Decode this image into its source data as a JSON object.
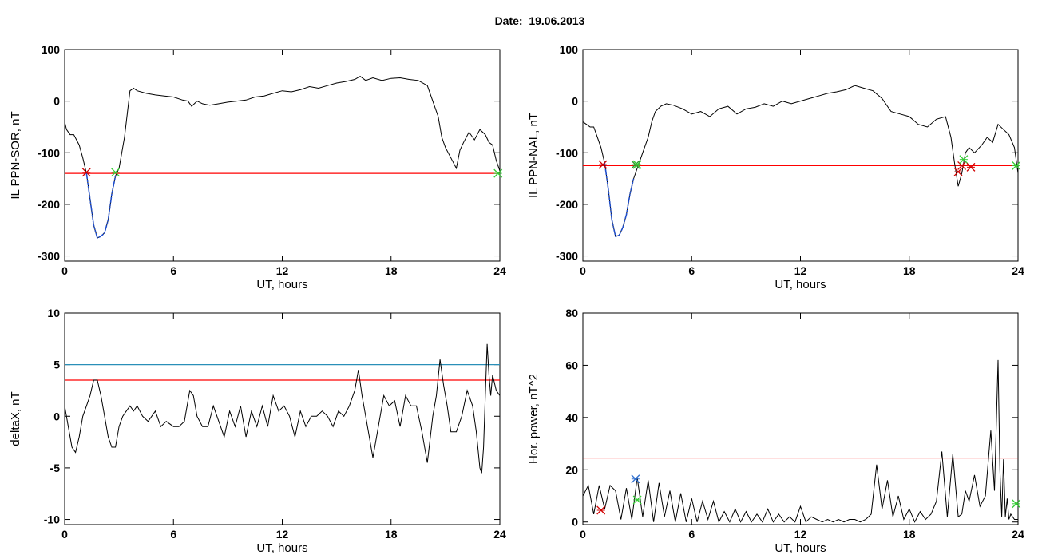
{
  "page_title": "Date:  19.06.2013",
  "chart_data": [
    {
      "type": "line",
      "ylabel": "IL PPN-SOR, nT",
      "xlabel": "UT, hours",
      "xlim": [
        0,
        24
      ],
      "ylim": [
        -310,
        100
      ],
      "xticks": [
        0,
        6,
        12,
        18,
        24
      ],
      "yticks": [
        -300,
        -200,
        -100,
        0,
        100
      ],
      "series": [
        {
          "color": "#000000",
          "x": [
            0,
            0.1,
            0.3,
            0.5,
            0.8,
            1.0,
            1.2,
            1.4,
            1.6,
            1.8,
            2.0,
            2.2,
            2.4,
            2.6,
            2.8,
            3.0,
            3.1,
            3.3,
            3.5,
            3.6,
            3.8,
            4.0,
            4.5,
            5.0,
            5.5,
            6.0,
            6.5,
            6.8,
            7.0,
            7.3,
            7.6,
            8.0,
            8.5,
            9.0,
            9.5,
            10.0,
            10.5,
            11.0,
            11.5,
            12.0,
            12.5,
            13.0,
            13.5,
            14.0,
            14.5,
            15.0,
            15.5,
            16.0,
            16.3,
            16.6,
            17.0,
            17.5,
            18.0,
            18.5,
            19.0,
            19.5,
            20.0,
            20.3,
            20.6,
            20.8,
            21.0,
            21.3,
            21.6,
            21.8,
            22.0,
            22.3,
            22.6,
            22.9,
            23.2,
            23.4,
            23.6,
            23.8,
            24.0
          ],
          "y": [
            -40,
            -55,
            -65,
            -65,
            -85,
            -110,
            -140,
            -190,
            -240,
            -265,
            -262,
            -255,
            -230,
            -180,
            -145,
            -130,
            -110,
            -70,
            -10,
            20,
            25,
            20,
            15,
            12,
            10,
            8,
            2,
            0,
            -10,
            0,
            -5,
            -8,
            -5,
            -2,
            0,
            2,
            8,
            10,
            15,
            20,
            18,
            22,
            28,
            25,
            30,
            35,
            38,
            42,
            48,
            40,
            45,
            40,
            44,
            45,
            42,
            40,
            30,
            0,
            -30,
            -70,
            -90,
            -110,
            -130,
            -95,
            -80,
            -60,
            -75,
            -55,
            -65,
            -80,
            -85,
            -115,
            -135
          ]
        },
        {
          "color": "#1f4fd0",
          "x": [
            1.2,
            1.4,
            1.6,
            1.8,
            2.0,
            2.2,
            2.4,
            2.6,
            2.8
          ],
          "y": [
            -140,
            -190,
            -240,
            -265,
            -262,
            -255,
            -230,
            -180,
            -145
          ]
        }
      ],
      "threshold_lines": [
        {
          "y": -140,
          "color": "#ff0000"
        }
      ],
      "markers": [
        {
          "x": 1.2,
          "y": -138,
          "color": "#d00000"
        },
        {
          "x": 2.8,
          "y": -138,
          "color": "#33cc33"
        },
        {
          "x": 23.9,
          "y": -140,
          "color": "#33cc33"
        }
      ]
    },
    {
      "type": "line",
      "ylabel": "IL PPN-NAL, nT",
      "xlabel": "UT, hours",
      "xlim": [
        0,
        24
      ],
      "ylim": [
        -310,
        100
      ],
      "xticks": [
        0,
        6,
        12,
        18,
        24
      ],
      "yticks": [
        -300,
        -200,
        -100,
        0,
        100
      ],
      "series": [
        {
          "color": "#000000",
          "x": [
            0,
            0.2,
            0.4,
            0.6,
            0.8,
            1.0,
            1.2,
            1.4,
            1.6,
            1.8,
            2.0,
            2.2,
            2.4,
            2.6,
            2.8,
            3.0,
            3.3,
            3.6,
            3.8,
            4.0,
            4.3,
            4.6,
            5.0,
            5.5,
            6.0,
            6.5,
            7.0,
            7.5,
            8.0,
            8.5,
            9.0,
            9.5,
            10.0,
            10.5,
            11.0,
            11.5,
            12.0,
            12.5,
            13.0,
            13.5,
            14.0,
            14.5,
            15.0,
            15.5,
            16.0,
            16.5,
            17.0,
            17.5,
            18.0,
            18.5,
            19.0,
            19.5,
            20.0,
            20.3,
            20.5,
            20.7,
            20.9,
            21.1,
            21.3,
            21.6,
            22.0,
            22.3,
            22.6,
            22.9,
            23.2,
            23.5,
            23.8,
            24.0
          ],
          "y": [
            -40,
            -45,
            -50,
            -50,
            -70,
            -90,
            -120,
            -170,
            -230,
            -262,
            -260,
            -245,
            -220,
            -180,
            -150,
            -130,
            -100,
            -70,
            -40,
            -20,
            -10,
            -5,
            -8,
            -15,
            -25,
            -20,
            -30,
            -15,
            -10,
            -25,
            -15,
            -12,
            -5,
            -10,
            0,
            -5,
            0,
            5,
            10,
            15,
            18,
            22,
            30,
            25,
            20,
            5,
            -20,
            -25,
            -30,
            -45,
            -50,
            -35,
            -30,
            -70,
            -120,
            -165,
            -140,
            -100,
            -90,
            -100,
            -85,
            -70,
            -80,
            -45,
            -55,
            -65,
            -90,
            -140
          ]
        },
        {
          "color": "#1f4fd0",
          "x": [
            1.2,
            1.4,
            1.6,
            1.8,
            2.0,
            2.2,
            2.4,
            2.6,
            2.8
          ],
          "y": [
            -120,
            -170,
            -230,
            -262,
            -260,
            -245,
            -220,
            -180,
            -150
          ]
        }
      ],
      "threshold_lines": [
        {
          "y": -125,
          "color": "#ff0000"
        }
      ],
      "markers": [
        {
          "x": 1.1,
          "y": -123,
          "color": "#d00000"
        },
        {
          "x": 2.9,
          "y": -123,
          "color": "#339933"
        },
        {
          "x": 3.0,
          "y": -123,
          "color": "#33cc33"
        },
        {
          "x": 20.7,
          "y": -137,
          "color": "#d00000"
        },
        {
          "x": 20.9,
          "y": -125,
          "color": "#d00000"
        },
        {
          "x": 21.0,
          "y": -113,
          "color": "#33cc33"
        },
        {
          "x": 21.4,
          "y": -128,
          "color": "#d00000"
        },
        {
          "x": 23.9,
          "y": -125,
          "color": "#33cc33"
        }
      ]
    },
    {
      "type": "line",
      "ylabel": "deltaX, nT",
      "xlabel": "UT, hours",
      "xlim": [
        0,
        24
      ],
      "ylim": [
        -10.5,
        10
      ],
      "xticks": [
        0,
        6,
        12,
        18,
        24
      ],
      "yticks": [
        -10,
        -5,
        0,
        5,
        10
      ],
      "series": [
        {
          "color": "#000000",
          "x": [
            0,
            0.2,
            0.4,
            0.6,
            0.8,
            1.0,
            1.2,
            1.4,
            1.6,
            1.8,
            2.0,
            2.2,
            2.4,
            2.6,
            2.8,
            3.0,
            3.2,
            3.4,
            3.6,
            3.8,
            4.0,
            4.3,
            4.6,
            5.0,
            5.3,
            5.6,
            6.0,
            6.3,
            6.6,
            6.9,
            7.1,
            7.3,
            7.6,
            7.9,
            8.2,
            8.5,
            8.8,
            9.1,
            9.4,
            9.7,
            10.0,
            10.3,
            10.6,
            10.9,
            11.2,
            11.5,
            11.8,
            12.1,
            12.4,
            12.7,
            13.0,
            13.3,
            13.6,
            13.9,
            14.2,
            14.5,
            14.8,
            15.1,
            15.4,
            15.7,
            16.0,
            16.2,
            16.4,
            16.6,
            16.8,
            17.0,
            17.2,
            17.4,
            17.6,
            17.9,
            18.2,
            18.5,
            18.8,
            19.1,
            19.4,
            19.7,
            20.0,
            20.3,
            20.5,
            20.7,
            20.9,
            21.1,
            21.3,
            21.6,
            21.9,
            22.2,
            22.5,
            22.7,
            22.9,
            23.0,
            23.1,
            23.2,
            23.3,
            23.4,
            23.5,
            23.6,
            23.8,
            24.0
          ],
          "y": [
            1,
            -1,
            -3,
            -3.5,
            -2,
            0,
            1,
            2,
            3.5,
            3.5,
            2,
            0,
            -2,
            -3,
            -3,
            -1,
            0,
            0.5,
            1,
            0.5,
            1,
            0,
            -0.5,
            0.5,
            -1,
            -0.5,
            -1,
            -1,
            -0.5,
            2.5,
            2,
            0,
            -1,
            -1,
            1,
            -0.5,
            -2,
            0.5,
            -1,
            1,
            -2,
            0.5,
            -1,
            1,
            -1,
            2,
            0.5,
            1,
            0,
            -2,
            0.5,
            -1,
            0,
            0,
            0.5,
            0,
            -1,
            0.5,
            0,
            1,
            2.5,
            4.5,
            2,
            0,
            -2,
            -4,
            -2,
            0,
            2,
            1,
            1.5,
            -1,
            2,
            1,
            1,
            -1.5,
            -4.5,
            0,
            2,
            5.5,
            3,
            1,
            -1.5,
            -1.5,
            0,
            2.5,
            1,
            -1.5,
            -5,
            -5.5,
            -3,
            2,
            7,
            4,
            2,
            4,
            2.5,
            2
          ]
        }
      ],
      "threshold_lines": [
        {
          "y": 5,
          "color": "#2a8fb8"
        },
        {
          "y": 3.5,
          "color": "#ff0000"
        }
      ],
      "markers": []
    },
    {
      "type": "line",
      "ylabel": "Hor. power, nT^2",
      "xlabel": "UT, hours",
      "xlim": [
        0,
        24
      ],
      "ylim": [
        -1,
        80
      ],
      "xticks": [
        0,
        6,
        12,
        18,
        24
      ],
      "yticks": [
        0,
        20,
        40,
        60,
        80
      ],
      "series": [
        {
          "color": "#000000",
          "x": [
            0,
            0.3,
            0.6,
            0.9,
            1.2,
            1.5,
            1.8,
            2.1,
            2.4,
            2.7,
            3.0,
            3.3,
            3.6,
            3.9,
            4.2,
            4.5,
            4.8,
            5.1,
            5.4,
            5.7,
            6.0,
            6.3,
            6.6,
            6.9,
            7.2,
            7.5,
            7.8,
            8.1,
            8.4,
            8.7,
            9.0,
            9.3,
            9.6,
            9.9,
            10.2,
            10.5,
            10.8,
            11.1,
            11.4,
            11.7,
            12.0,
            12.3,
            12.6,
            12.9,
            13.2,
            13.5,
            13.8,
            14.1,
            14.4,
            14.7,
            15.0,
            15.3,
            15.6,
            15.9,
            16.2,
            16.5,
            16.8,
            17.1,
            17.4,
            17.7,
            18.0,
            18.3,
            18.6,
            18.9,
            19.2,
            19.5,
            19.8,
            20.1,
            20.4,
            20.7,
            20.9,
            21.1,
            21.3,
            21.6,
            21.9,
            22.2,
            22.5,
            22.7,
            22.9,
            23.0,
            23.1,
            23.2,
            23.3,
            23.4,
            23.5,
            23.6,
            23.7,
            23.8,
            24.0
          ],
          "y": [
            10,
            14,
            3,
            14,
            5,
            14,
            12,
            1,
            13,
            1,
            17,
            2,
            16,
            0,
            15,
            2,
            12,
            0,
            11,
            0,
            9,
            0,
            8,
            1,
            8,
            0,
            4,
            0,
            5,
            0,
            4,
            0,
            3,
            0,
            5,
            0,
            3,
            0,
            2,
            0,
            6,
            0,
            2,
            1,
            0,
            1,
            0,
            1,
            0,
            1,
            1,
            0,
            1,
            3,
            22,
            5,
            16,
            2,
            10,
            1,
            5,
            0,
            4,
            1,
            3,
            8,
            27,
            2,
            26,
            2,
            3,
            12,
            8,
            18,
            6,
            10,
            35,
            12,
            62,
            20,
            2,
            24,
            2,
            9,
            1,
            3,
            2,
            1,
            1
          ]
        }
      ],
      "threshold_lines": [
        {
          "y": 24.5,
          "color": "#ff0000"
        }
      ],
      "markers": [
        {
          "x": 1.0,
          "y": 4.5,
          "color": "#d00000"
        },
        {
          "x": 2.9,
          "y": 16.5,
          "color": "#3070d0"
        },
        {
          "x": 3.0,
          "y": 8.5,
          "color": "#33cc33"
        },
        {
          "x": 23.9,
          "y": 7,
          "color": "#33cc33"
        }
      ]
    }
  ]
}
